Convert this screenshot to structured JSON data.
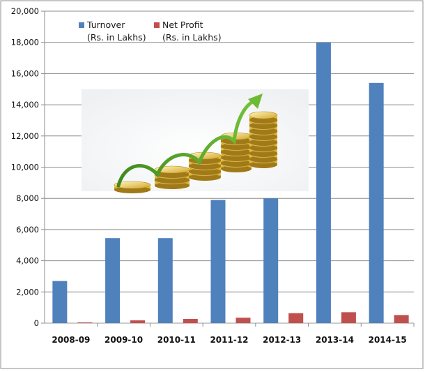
{
  "chart_data": {
    "type": "bar",
    "categories": [
      "2008-09",
      "2009-10",
      "2010-11",
      "2011-12",
      "2012-13",
      "2013-14",
      "2014-15"
    ],
    "series": [
      {
        "name": "Turnover",
        "unit": "(Rs. in Lakhs)",
        "color": "#4f81bd",
        "values": [
          2700,
          5450,
          5450,
          7900,
          8000,
          18000,
          15400
        ]
      },
      {
        "name": "Net Profit",
        "unit": "(Rs. in Lakhs)",
        "color": "#c0504d",
        "values": [
          50,
          180,
          270,
          350,
          640,
          700,
          520
        ]
      }
    ],
    "title": "",
    "xlabel": "",
    "ylabel": "",
    "ylim": [
      0,
      20000
    ],
    "yticks": [
      "0",
      "2,000",
      "4,000",
      "6,000",
      "8,000",
      "10,000",
      "12,000",
      "14,000",
      "16,000",
      "18,000",
      "20,000"
    ],
    "grid": true,
    "legend": "top-left",
    "decoration": "stacked-gold-coins-with-green-arrow-icon"
  }
}
